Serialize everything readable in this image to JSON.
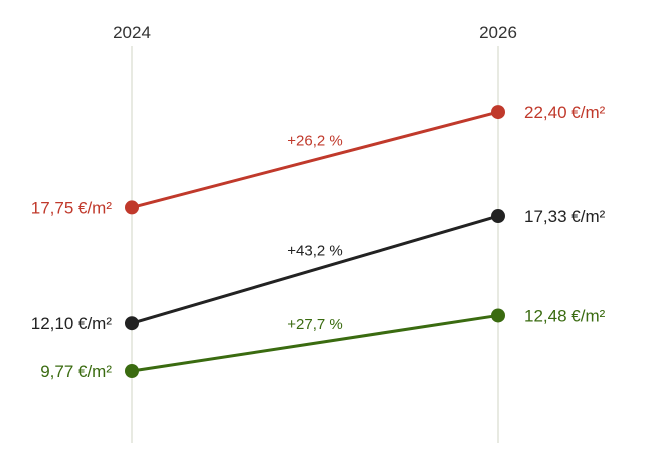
{
  "chart_data": {
    "type": "slope",
    "x": [
      "2024",
      "2026"
    ],
    "unit": "€/m²",
    "ylim": [
      9,
      23
    ],
    "grid": false,
    "series": [
      {
        "color": "#c0392b",
        "values": [
          17.75,
          22.4
        ],
        "labels": [
          "17,75 €/m²",
          "22,40 €/m²"
        ],
        "change_label": "+26,2 %"
      },
      {
        "color": "#222222",
        "values": [
          12.1,
          17.33
        ],
        "labels": [
          "12,10 €/m²",
          "17,33 €/m²"
        ],
        "change_label": "+43,2 %"
      },
      {
        "color": "#3a6b10",
        "values": [
          9.77,
          12.48
        ],
        "labels": [
          "9,77 €/m²",
          "12,48 €/m²"
        ],
        "change_label": "+27,7 %"
      }
    ]
  }
}
